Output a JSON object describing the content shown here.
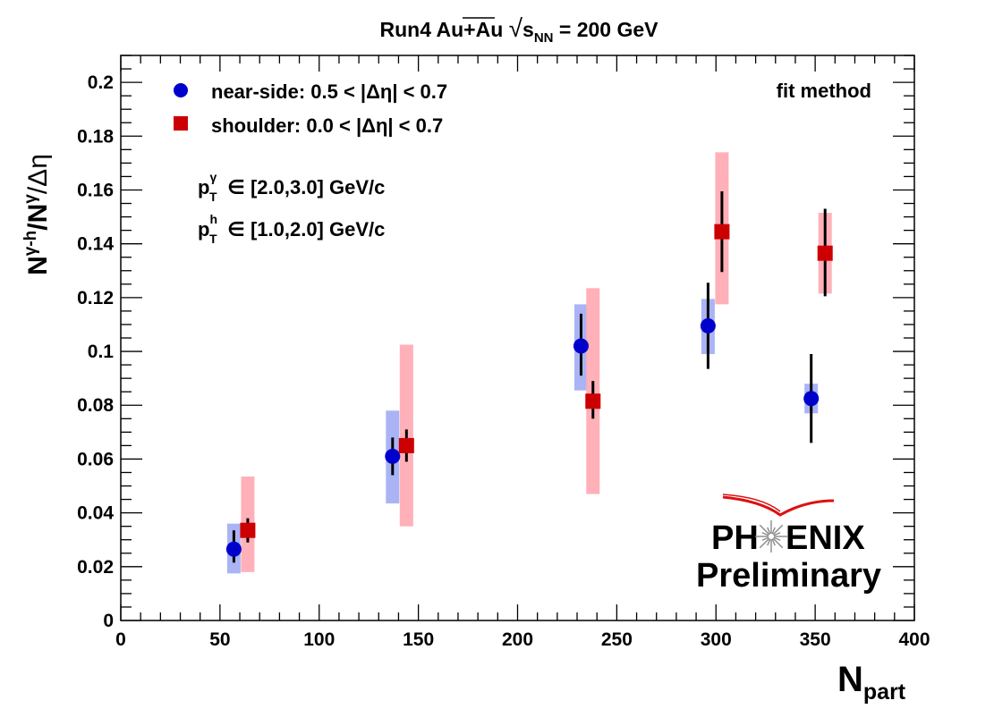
{
  "chart_data": {
    "type": "scatter",
    "title": "Run4 Au+Au √s_NN = 200 GeV",
    "title_parts": {
      "main": "Run4 Au+Au ",
      "sqrt": "√",
      "s": "s",
      "sub": "NN",
      "rest": " = 200 GeV"
    },
    "xlabel": {
      "main": "N",
      "sub": "part"
    },
    "ylabel": {
      "n1": "N",
      "sup1": "γ-h",
      "slash": "/",
      "n2": "N",
      "sup2": "γ",
      "rest": "/Δη"
    },
    "xlim": [
      0,
      400
    ],
    "ylim": [
      0,
      0.21
    ],
    "x_ticks": [
      0,
      50,
      100,
      150,
      200,
      250,
      300,
      350,
      400
    ],
    "x_tick_labels": [
      "0",
      "50",
      "100",
      "150",
      "200",
      "250",
      "300",
      "350",
      "400"
    ],
    "y_ticks": [
      0,
      0.02,
      0.04,
      0.06,
      0.08,
      0.1,
      0.12,
      0.14,
      0.16,
      0.18,
      0.2
    ],
    "y_tick_labels": [
      "0",
      "0.02",
      "0.04",
      "0.06",
      "0.08",
      "0.1",
      "0.12",
      "0.14",
      "0.16",
      "0.18",
      "0.2"
    ],
    "grid": false,
    "legend_position": "top-left",
    "series": [
      {
        "name": "near-side: 0.5 < |Δη| < 0.7",
        "marker": "circle",
        "color": "#0000cc",
        "syst_color": "#aab4f5",
        "points": [
          {
            "x": 57,
            "y": 0.0265,
            "stat": [
              0.0215,
              0.0335
            ],
            "syst": [
              0.0175,
              0.036
            ]
          },
          {
            "x": 137,
            "y": 0.061,
            "stat": [
              0.054,
              0.068
            ],
            "syst": [
              0.0435,
              0.078
            ]
          },
          {
            "x": 232,
            "y": 0.102,
            "stat": [
              0.091,
              0.114
            ],
            "syst": [
              0.0855,
              0.1175
            ]
          },
          {
            "x": 296,
            "y": 0.1095,
            "stat": [
              0.0935,
              0.1255
            ],
            "syst": [
              0.099,
              0.1195
            ]
          },
          {
            "x": 348,
            "y": 0.0825,
            "stat": [
              0.066,
              0.099
            ],
            "syst": [
              0.077,
              0.088
            ]
          }
        ]
      },
      {
        "name": "shoulder: 0.0 < |Δη| < 0.7",
        "marker": "square",
        "color": "#cc0000",
        "syst_color": "#ffb0b8",
        "points": [
          {
            "x": 64,
            "y": 0.0335,
            "stat": [
              0.029,
              0.038
            ],
            "syst": [
              0.018,
              0.0535
            ]
          },
          {
            "x": 144,
            "y": 0.065,
            "stat": [
              0.059,
              0.071
            ],
            "syst": [
              0.035,
              0.1025
            ]
          },
          {
            "x": 238,
            "y": 0.0815,
            "stat": [
              0.075,
              0.089
            ],
            "syst": [
              0.047,
              0.1235
            ]
          },
          {
            "x": 303,
            "y": 0.1445,
            "stat": [
              0.1295,
              0.1595
            ],
            "syst": [
              0.1175,
              0.174
            ]
          },
          {
            "x": 355,
            "y": 0.1365,
            "stat": [
              0.1205,
              0.153
            ],
            "syst": [
              0.1215,
              0.1515
            ]
          }
        ]
      }
    ],
    "annotations": {
      "method": "fit method",
      "pt_gamma": {
        "p": "p",
        "sub": "T",
        "sup": "γ",
        "rest": " ∈ [2.0,3.0] GeV/c"
      },
      "pt_h": {
        "p": "p",
        "sub": "T",
        "sup": "h",
        "rest": " ∈ [1.0,2.0] GeV/c"
      }
    },
    "logo": {
      "line1_a": "PH",
      "line1_b": "ENIX",
      "line2": "Preliminary"
    },
    "colors": {
      "logo_red": "#dd1111",
      "logo_dark": "#222222",
      "logo_gray": "#7a7a7a"
    }
  }
}
